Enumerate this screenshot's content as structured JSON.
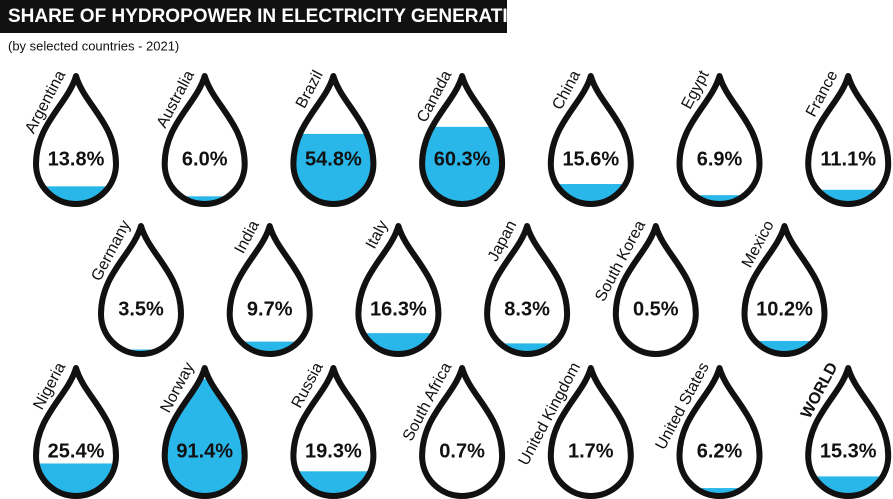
{
  "chart_data": {
    "type": "drop",
    "title": "SHARE OF HYDROPOWER IN ELECTRICITY GENERATION",
    "subtitle": "(by selected countries - 2021)",
    "categories": [
      "Argentina",
      "Australia",
      "Brazil",
      "Canada",
      "China",
      "Egypt",
      "France",
      "Germany",
      "India",
      "Italy",
      "Japan",
      "South Korea",
      "Mexico",
      "Nigeria",
      "Norway",
      "Russia",
      "South Africa",
      "United Kingdom",
      "United States",
      "WORLD"
    ],
    "values": [
      13.8,
      6.0,
      54.8,
      60.3,
      15.6,
      6.9,
      11.1,
      3.5,
      9.7,
      16.3,
      8.3,
      0.5,
      10.2,
      25.4,
      91.4,
      19.3,
      0.7,
      1.7,
      6.2,
      15.3
    ],
    "value_labels": [
      "13.8%",
      "6.0%",
      "54.8%",
      "60.3%",
      "15.6%",
      "6.9%",
      "11.1%",
      "3.5%",
      "9.7%",
      "16.3%",
      "8.3%",
      "0.5%",
      "10.2%",
      "25.4%",
      "91.4%",
      "19.3%",
      "0.7%",
      "1.7%",
      "6.2%",
      "15.3%"
    ],
    "ylim": [
      0,
      100
    ],
    "color": "#29b6e8"
  }
}
